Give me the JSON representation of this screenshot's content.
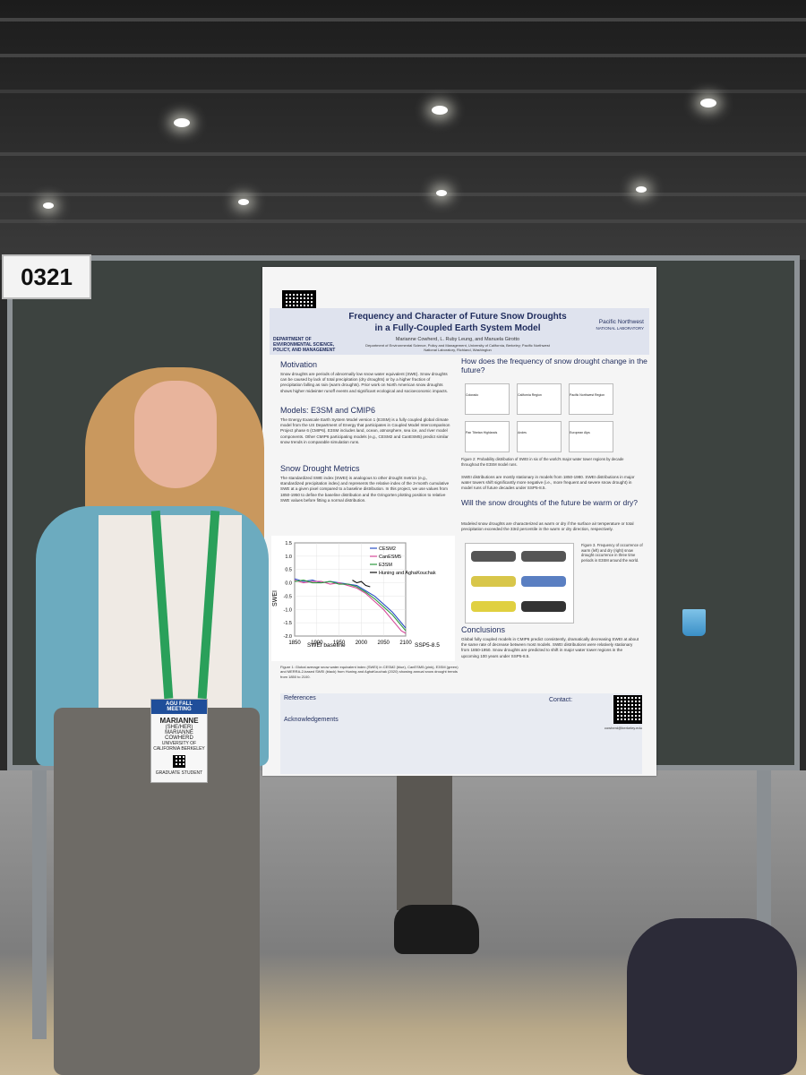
{
  "board_number": "0321",
  "poster": {
    "title_line1": "Frequency and Character of Future Snow Droughts",
    "title_line2": "in a Fully-Coupled Earth System Model",
    "authors": "Marianne Cowherd, L. Ruby Leung, and Manuela Girotto",
    "affiliations": "Department of Environmental Science, Policy and Management, University of California, Berkeley; Pacific Northwest National Laboratory, Richland, Washington",
    "logo_left": "DEPARTMENT OF ENVIRONMENTAL SCIENCE, POLICY, AND MANAGEMENT",
    "logo_right_line1": "Pacific Northwest",
    "logo_right_line2": "NATIONAL LABORATORY",
    "motivation_heading": "Motivation",
    "motivation_text": "Snow droughts are periods of abnormally low snow water equivalent (SWE). Snow droughts can be caused by lack of total precipitation (dry droughts) or by a higher fraction of precipitation falling as rain (warm droughts). Prior work on North American snow droughts shows higher midwinter runoff events and significant ecological and socioeconomic impacts.",
    "models_heading": "Models: E3SM and CMIP6",
    "models_text": "The Energy Exascale Earth System Model version 1 (E3SM) is a fully coupled global climate model from the US Department of Energy that participates in Coupled Model Intercomparison Project phase 6 (CMIP6). E3SM includes land, ocean, atmosphere, sea ice, and river model components. Other CMIP6 participating models (e.g., CESM2 and CanESM5) predict similar snow trends in comparable simulation runs.",
    "metrics_heading": "Snow Drought Metrics",
    "metrics_text": "The standardized SWE index (SWEI) is analogous to other drought metrics (e.g., standardized precipitation index) and represents the relative index of the 3-month cumulative SWE at a given pixel compared to a baseline distribution. In this project, we use values from 1850-1950 to define the baseline distribution and the Gringorten plotting position to relative SWE values before fitting a normal distribution.",
    "frequency_heading": "How does the frequency of snow drought change in the future?",
    "thumb_labels": [
      "Colorado",
      "California Region",
      "Pacific Northwest Region",
      "Pan Tibetan Highlands",
      "Andes",
      "European Alps"
    ],
    "fig2_caption": "Figure 2: Probability distribution of SWEI in six of the world's major water tower regions by decade throughout the E3SM model runs.",
    "frequency_text": "SWEI distributions are mostly stationary in models from 1850-1980. SWEI distributions in major water towers shift significantly more negative (i.e., more frequent and severe snow drought) in model runs of future decades under SSP5-8.5.",
    "warmdry_heading": "Will the snow droughts of the future be warm or dry?",
    "warmdry_text": "Modeled snow droughts are characterized as warm or dry if the surface air temperature or total precipitation exceeded the 33rd percentile in the warm or dry direction, respectively.",
    "fig3_caption": "Figure 3. Frequency of occurrence of warm (left) and dry (right) snow drought occurrence in three time periods in E3SM around the world.",
    "conclusions_heading": "Conclusions",
    "conclusions_text": "Global fully coupled models in CMIP6 predict consistently, dramatically decreasing SWEI at about the same rate of decrease between most models. SWEI distributions were relatively stationary from 1850-1950. Snow droughts are predicted to shift in major water tower regions in the upcoming 100 years under SSP5-8.5.",
    "fig1_caption": "Figure 1: Global average snow water equivalent index (SWEI) in CESM2 (blue), CanESM5 (pink), E3SM (green) and MERRA-2-based SWEI (black) from Huning and AghaKouchak (2020) showing annual snow drought trends from 1850 to 2100.",
    "references_heading": "References",
    "ack_heading": "Acknowledgements",
    "contact_label": "Contact:",
    "contact_email": "cowherd@berkeley.edu"
  },
  "chart_data": {
    "type": "line",
    "xlabel": "",
    "ylabel": "SWEI",
    "xlim": [
      1850,
      2100
    ],
    "ylim": [
      -2.0,
      1.5
    ],
    "xticks": [
      1850,
      1900,
      1950,
      2000,
      2050,
      2100
    ],
    "yticks": [
      1.5,
      1.0,
      0.5,
      0.0,
      -0.5,
      -1.0,
      -1.5,
      -2.0
    ],
    "annotations": [
      "SWEI baseline",
      "SSP5-8.5"
    ],
    "legend_position": "top-right",
    "series": [
      {
        "name": "CESM2",
        "color": "#2b4fc4",
        "x": [
          1850,
          1870,
          1890,
          1910,
          1930,
          1950,
          1970,
          1990,
          2010,
          2030,
          2050,
          2070,
          2090,
          2100
        ],
        "values": [
          0.15,
          0.05,
          0.1,
          0.0,
          0.05,
          0.0,
          -0.05,
          -0.1,
          -0.3,
          -0.5,
          -0.8,
          -1.1,
          -1.5,
          -1.7
        ]
      },
      {
        "name": "CanESM5",
        "color": "#d64a9a",
        "x": [
          1850,
          1870,
          1890,
          1910,
          1930,
          1950,
          1970,
          1990,
          2010,
          2030,
          2050,
          2070,
          2090,
          2100
        ],
        "values": [
          0.1,
          0.0,
          0.05,
          0.05,
          -0.05,
          0.0,
          -0.1,
          -0.2,
          -0.4,
          -0.7,
          -1.0,
          -1.4,
          -1.8,
          -1.9
        ]
      },
      {
        "name": "E3SM",
        "color": "#2f9a3e",
        "x": [
          1850,
          1870,
          1890,
          1910,
          1930,
          1950,
          1970,
          1990,
          2010,
          2030,
          2050,
          2070,
          2090,
          2100
        ],
        "values": [
          0.05,
          0.1,
          0.0,
          0.0,
          0.05,
          -0.05,
          -0.05,
          -0.15,
          -0.35,
          -0.6,
          -0.9,
          -1.2,
          -1.6,
          -1.8
        ]
      },
      {
        "name": "Huning and AghaKouchak",
        "color": "#111111",
        "x": [
          1980,
          1990,
          2000,
          2010,
          2020
        ],
        "values": [
          0.1,
          0.0,
          0.05,
          -0.1,
          -0.15
        ]
      }
    ]
  },
  "badge": {
    "event": "AGU FALL MEETING",
    "first_name": "MARIANNE",
    "pronouns": "(SHE/HER)",
    "full_name": "MARIANNE COWHERD",
    "affiliation": "UNIVERSITY OF CALIFORNIA BERKELEY",
    "role": "GRADUATE STUDENT"
  }
}
